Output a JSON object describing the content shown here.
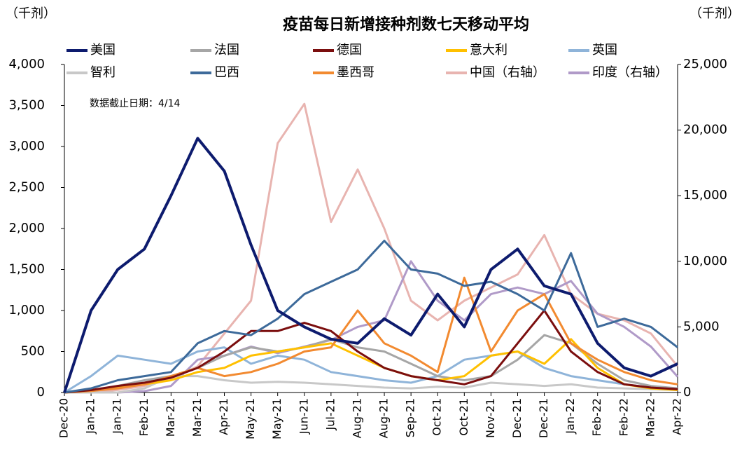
{
  "chart_data": {
    "type": "line",
    "title": "疫苗每日新增接种剂数七天移动平均",
    "y_label": "（千剂）",
    "y2_label": "（千剂）",
    "annotation": "数据截止日期：4/14",
    "categories": [
      "Dec-20",
      "Jan-21",
      "Jan-21",
      "Feb-21",
      "Mar-21",
      "Mar-21",
      "Apr-21",
      "May-21",
      "May-21",
      "Jun-21",
      "Jul-21",
      "Aug-21",
      "Aug-21",
      "Sep-21",
      "Oct-21",
      "Oct-21",
      "Nov-21",
      "Dec-21",
      "Dec-21",
      "Jan-22",
      "Feb-22",
      "Feb-22",
      "Mar-22",
      "Apr-22"
    ],
    "ylim": [
      0,
      4000
    ],
    "yticks": [
      0,
      500,
      {
        "value": 1000,
        "label": "1,000"
      },
      {
        "value": 1500,
        "label": "1,500"
      },
      {
        "value": 2000,
        "label": "2,000"
      },
      {
        "value": 2500,
        "label": "2,500"
      },
      {
        "value": 3000,
        "label": "3,000"
      },
      {
        "value": 3500,
        "label": "3,500"
      },
      {
        "value": 4000,
        "label": "4,000"
      }
    ],
    "y2lim": [
      0,
      25000
    ],
    "y2ticks": [
      0,
      {
        "value": 5000,
        "label": "5,000"
      },
      {
        "value": 10000,
        "label": "10,000"
      },
      {
        "value": 15000,
        "label": "15,000"
      },
      {
        "value": 20000,
        "label": "20,000"
      },
      {
        "value": 25000,
        "label": "25,000"
      }
    ],
    "series": [
      {
        "name": "美国",
        "color": "#0d1b6e",
        "values": [
          0,
          1000,
          1500,
          1750,
          2400,
          3100,
          2700,
          1800,
          1000,
          800,
          650,
          600,
          900,
          700,
          1200,
          800,
          1500,
          1750,
          1300,
          1200,
          600,
          300,
          200,
          350
        ]
      },
      {
        "name": "法国",
        "color": "#a6a6a6",
        "values": [
          0,
          20,
          80,
          150,
          200,
          300,
          450,
          550,
          500,
          550,
          650,
          550,
          500,
          350,
          200,
          150,
          200,
          400,
          700,
          600,
          350,
          150,
          80,
          50
        ]
      },
      {
        "name": "德国",
        "color": "#7b0e0e",
        "values": [
          0,
          30,
          80,
          120,
          180,
          300,
          500,
          750,
          750,
          850,
          750,
          500,
          300,
          200,
          150,
          100,
          200,
          600,
          1000,
          500,
          250,
          100,
          60,
          40
        ]
      },
      {
        "name": "意大利",
        "color": "#ffc000",
        "values": [
          0,
          20,
          60,
          100,
          150,
          250,
          300,
          450,
          500,
          550,
          600,
          450,
          300,
          200,
          150,
          200,
          450,
          500,
          350,
          650,
          300,
          100,
          50,
          30
        ]
      },
      {
        "name": "英国",
        "color": "#8fb4d9",
        "values": [
          0,
          200,
          450,
          400,
          350,
          500,
          550,
          350,
          450,
          400,
          250,
          200,
          150,
          120,
          200,
          400,
          450,
          500,
          300,
          200,
          150,
          100,
          60,
          40
        ]
      },
      {
        "name": "智利",
        "color": "#c8c8c8",
        "values": [
          0,
          0,
          0,
          50,
          200,
          200,
          150,
          120,
          130,
          120,
          100,
          80,
          60,
          50,
          70,
          60,
          120,
          100,
          80,
          100,
          60,
          50,
          40,
          30
        ]
      },
      {
        "name": "巴西",
        "color": "#3d6a9a",
        "values": [
          0,
          50,
          150,
          200,
          250,
          600,
          750,
          700,
          900,
          1200,
          1350,
          1500,
          1850,
          1500,
          1450,
          1300,
          1350,
          1200,
          1000,
          1700,
          800,
          900,
          800,
          550
        ]
      },
      {
        "name": "墨西哥",
        "color": "#f28a30",
        "values": [
          0,
          20,
          50,
          100,
          200,
          300,
          200,
          250,
          350,
          500,
          550,
          1000,
          600,
          450,
          250,
          1400,
          500,
          1000,
          1200,
          600,
          400,
          250,
          150,
          100
        ]
      },
      {
        "name": "中国（右轴）",
        "color": "#e8b4b0",
        "axis": "y2",
        "values": [
          0,
          0,
          200,
          500,
          1000,
          2000,
          4500,
          7000,
          19000,
          22000,
          13000,
          17000,
          12500,
          7000,
          5500,
          7000,
          8000,
          9000,
          12000,
          7500,
          6000,
          5500,
          4500,
          2000
        ]
      },
      {
        "name": "印度（右轴）",
        "color": "#b09ac8",
        "axis": "y2",
        "values": [
          0,
          0,
          0,
          100,
          500,
          2500,
          2800,
          3500,
          3000,
          3500,
          4000,
          5000,
          5500,
          10000,
          7000,
          5500,
          7500,
          8000,
          7500,
          8500,
          6000,
          5000,
          3500,
          1200
        ]
      }
    ]
  }
}
